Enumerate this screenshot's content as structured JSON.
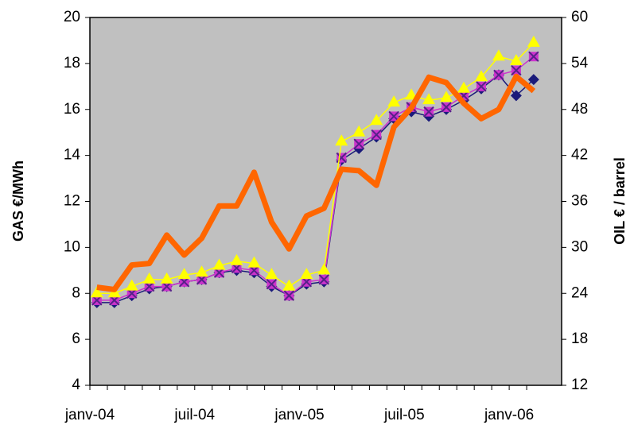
{
  "chart_data": {
    "type": "line",
    "categories": [
      "janv-04",
      null,
      null,
      null,
      null,
      null,
      "juil-04",
      null,
      null,
      null,
      null,
      null,
      "janv-05",
      null,
      null,
      null,
      null,
      null,
      "juil-05",
      null,
      null,
      null,
      null,
      null,
      "janv-06",
      null
    ],
    "ylabel": "GAS €/MWh",
    "y2label": "OIL € / barrel",
    "ylim": [
      4,
      20
    ],
    "yticks": [
      4,
      6,
      8,
      10,
      12,
      14,
      16,
      18,
      20
    ],
    "y2lim": [
      12,
      60
    ],
    "y2ticks": [
      12,
      18,
      24,
      30,
      36,
      42,
      48,
      54,
      60
    ],
    "series": [
      {
        "color": "#1a1a7a",
        "marker": "diamond",
        "values": [
          7.6,
          7.6,
          7.9,
          8.2,
          8.3,
          8.5,
          8.6,
          8.9,
          9.0,
          8.9,
          8.3,
          7.9,
          8.4,
          8.5,
          13.8,
          14.3,
          14.8,
          15.6,
          15.9,
          15.7,
          16.0,
          16.4,
          16.9,
          17.5,
          16.6,
          17.3
        ]
      },
      {
        "color": "#cc33cc",
        "marker": "square",
        "values": [
          7.7,
          7.7,
          8.0,
          8.3,
          8.3,
          8.5,
          8.6,
          8.9,
          9.1,
          9.0,
          8.4,
          7.9,
          8.5,
          8.6,
          13.9,
          14.5,
          14.9,
          15.7,
          16.1,
          15.9,
          16.1,
          16.6,
          17.0,
          17.5,
          17.7,
          18.3
        ]
      },
      {
        "color": "#ffff00",
        "marker": "triangle",
        "values": [
          8.0,
          8.0,
          8.3,
          8.6,
          8.6,
          8.8,
          8.9,
          9.2,
          9.4,
          9.3,
          8.8,
          8.3,
          8.8,
          9.0,
          14.6,
          15.0,
          15.5,
          16.3,
          16.6,
          16.4,
          16.5,
          16.9,
          17.4,
          18.3,
          18.1,
          18.9
        ]
      },
      {
        "color": "#ff6600",
        "marker": "none",
        "axis": "y2",
        "values": [
          24.8,
          24.5,
          27.7,
          27.9,
          31.6,
          29.0,
          31.2,
          35.4,
          35.4,
          39.8,
          33.3,
          29.8,
          34.1,
          35.1,
          40.2,
          40.0,
          38.1,
          45.7,
          48.2,
          52.2,
          51.5,
          48.8,
          46.8,
          48.0,
          52.3,
          50.4
        ]
      }
    ]
  }
}
